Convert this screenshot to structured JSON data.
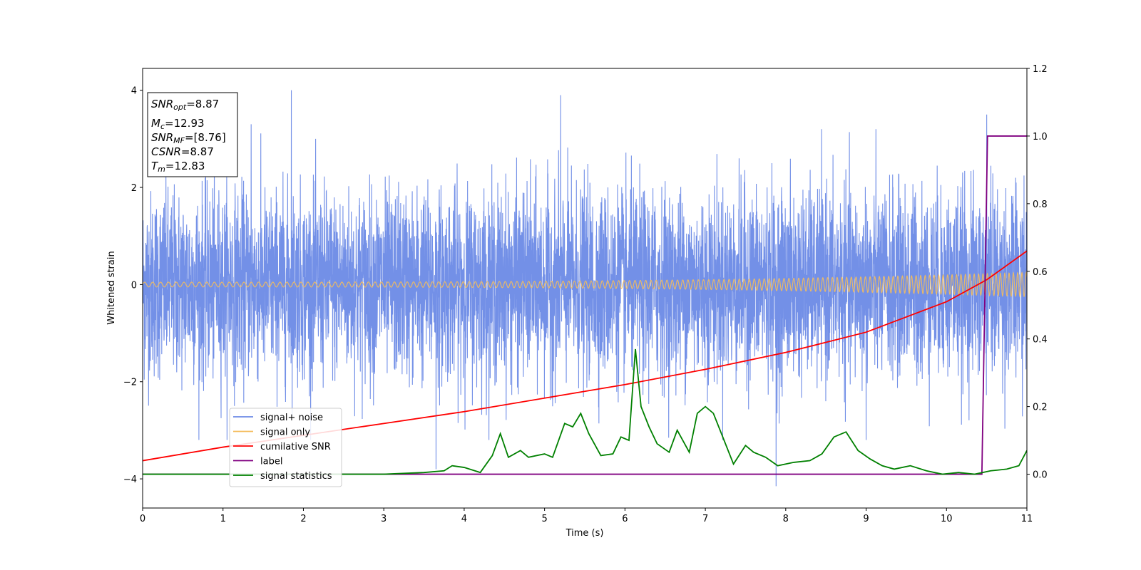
{
  "chart_data": {
    "type": "line",
    "xlabel": "Time (s)",
    "ylabel": "Whitened strain",
    "xlim": [
      0,
      11
    ],
    "ylim_left": [
      -4.6,
      4.45
    ],
    "ylim_right": [
      -0.1,
      1.2
    ],
    "x_ticks": [
      "0",
      "1",
      "2",
      "3",
      "4",
      "5",
      "6",
      "7",
      "8",
      "9",
      "10",
      "11"
    ],
    "y_ticks_left": [
      "−4",
      "−2",
      "0",
      "2",
      "4"
    ],
    "y_ticks_right": [
      "0.0",
      "0.2",
      "0.4",
      "0.6",
      "0.8",
      "1.0",
      "1.2"
    ],
    "grid": false,
    "legend_position": "lower-left",
    "series": [
      {
        "name": "signal+ noise",
        "axis": "left",
        "color": "#6b8ae6",
        "description": "dense noisy time series, mostly within ±2, spikes up to about 4",
        "points": [
          [
            0,
            0.3
          ],
          [
            1.0,
            -0.2
          ],
          [
            1.35,
            3.3
          ],
          [
            1.85,
            4.0
          ],
          [
            2.5,
            -0.5
          ],
          [
            3.65,
            -3.8
          ],
          [
            4.2,
            0.4
          ],
          [
            5.2,
            3.9
          ],
          [
            6.0,
            -0.3
          ],
          [
            7.0,
            0.1
          ],
          [
            7.88,
            -4.15
          ],
          [
            8.0,
            0.5
          ],
          [
            9.0,
            -3.2
          ],
          [
            9.6,
            1.8
          ],
          [
            10.5,
            3.5
          ],
          [
            11.0,
            0.2
          ]
        ]
      },
      {
        "name": "signal only",
        "axis": "left",
        "color": "#f4bc5c",
        "description": "chirp oscillation around 0, amplitude growing from ~0.05 to ~0.25 with increasing frequency"
      },
      {
        "name": "cumilative SNR",
        "axis": "right",
        "color": "#ff0000",
        "x": [
          0,
          1,
          2,
          3,
          4,
          5,
          6,
          7,
          8,
          9,
          10,
          10.5,
          11
        ],
        "y": [
          0.04,
          0.08,
          0.115,
          0.15,
          0.185,
          0.225,
          0.265,
          0.31,
          0.36,
          0.42,
          0.51,
          0.575,
          0.66
        ]
      },
      {
        "name": "label",
        "axis": "right",
        "color": "#800080",
        "x": [
          0,
          10.44,
          10.51,
          11
        ],
        "y": [
          0.0,
          0.0,
          1.0,
          1.0
        ]
      },
      {
        "name": "signal statistics",
        "axis": "right",
        "color": "#008000",
        "x": [
          0,
          1,
          2,
          3,
          3.5,
          3.75,
          3.85,
          4.0,
          4.2,
          4.35,
          4.45,
          4.55,
          4.7,
          4.8,
          5.0,
          5.1,
          5.25,
          5.35,
          5.45,
          5.55,
          5.7,
          5.85,
          5.95,
          6.05,
          6.13,
          6.2,
          6.3,
          6.4,
          6.55,
          6.65,
          6.8,
          6.9,
          7.0,
          7.1,
          7.2,
          7.35,
          7.5,
          7.6,
          7.75,
          7.9,
          8.1,
          8.3,
          8.45,
          8.6,
          8.75,
          8.9,
          9.05,
          9.2,
          9.35,
          9.55,
          9.75,
          9.95,
          10.15,
          10.35,
          10.55,
          10.75,
          10.9,
          11.0
        ],
        "y": [
          0.0,
          0.0,
          0.0,
          0.0,
          0.005,
          0.01,
          0.025,
          0.02,
          0.005,
          0.055,
          0.12,
          0.05,
          0.07,
          0.05,
          0.06,
          0.05,
          0.15,
          0.14,
          0.18,
          0.12,
          0.055,
          0.06,
          0.11,
          0.1,
          0.37,
          0.2,
          0.14,
          0.09,
          0.065,
          0.13,
          0.065,
          0.18,
          0.2,
          0.18,
          0.12,
          0.03,
          0.085,
          0.065,
          0.05,
          0.025,
          0.035,
          0.04,
          0.06,
          0.11,
          0.125,
          0.07,
          0.045,
          0.025,
          0.015,
          0.025,
          0.01,
          0.0,
          0.005,
          0.0,
          0.01,
          0.015,
          0.025,
          0.07
        ]
      }
    ]
  },
  "annotation_box": {
    "snr_opt": {
      "symbol": "SNR",
      "sub": "opt",
      "value": "=8.87"
    },
    "mc": {
      "symbol": "M",
      "sub": "c",
      "value": "=12.93"
    },
    "snr_mf": {
      "symbol": "SNR",
      "sub": "MF",
      "value": "=[8.76]"
    },
    "csnr": {
      "symbol": "CSNR",
      "value": "=8.87"
    },
    "tm": {
      "symbol": "T",
      "sub": "m",
      "value": "=12.83"
    }
  }
}
